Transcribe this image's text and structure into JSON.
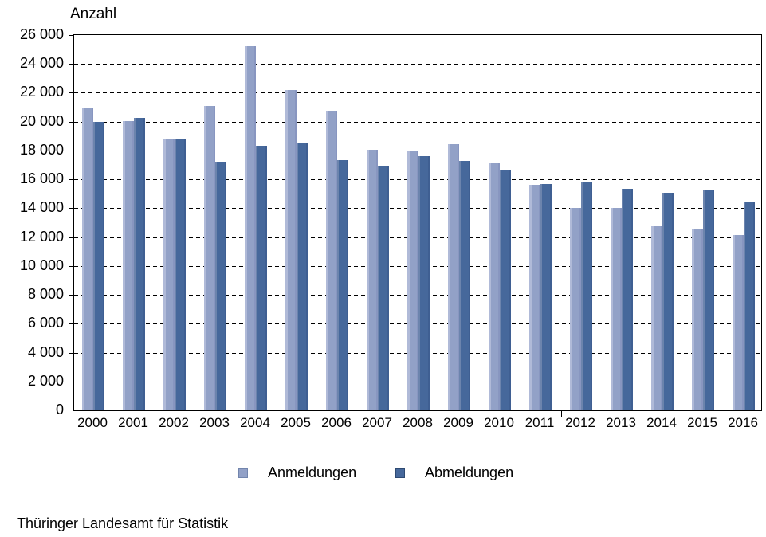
{
  "title": "Anzahl",
  "footer": "Thüringer Landesamt für Statistik",
  "legend": {
    "items": [
      {
        "label": "Anmeldungen",
        "series": "anmeldungen"
      },
      {
        "label": "Abmeldungen",
        "series": "abmeldungen"
      }
    ],
    "position": "bottom"
  },
  "y_axis": {
    "label": "Anzahl",
    "min": 0,
    "max": 26000,
    "step": 2000,
    "tick_labels": [
      "0",
      "2 000",
      "4 000",
      "6 000",
      "8 000",
      "10 000",
      "12 000",
      "14 000",
      "16 000",
      "18 000",
      "20 000",
      "22 000",
      "24 000",
      "26 000"
    ]
  },
  "colors": {
    "anmeldungen": "#92a1c7",
    "anmeldungen_highlight": "#b0bad8",
    "anmeldungen_shadow": "#8896c0",
    "anmeldungen_border": "#7285ad",
    "abmeldungen": "#46689b",
    "abmeldungen_highlight": "#6c84ad",
    "abmeldungen_shadow": "#3f5f92",
    "abmeldungen_border": "#2e4a72",
    "grid": "#000000",
    "axis": "#000000",
    "text": "#000000"
  },
  "chart_data": {
    "type": "bar",
    "title": "Anzahl",
    "xlabel": "",
    "ylabel": "Anzahl",
    "ylim": [
      0,
      26000
    ],
    "grid": "horizontal-dashed",
    "legend_position": "bottom",
    "categories": [
      "2000",
      "2001",
      "2002",
      "2003",
      "2004",
      "2005",
      "2006",
      "2007",
      "2008",
      "2009",
      "2010",
      "2011",
      "2012",
      "2013",
      "2014",
      "2015",
      "2016"
    ],
    "series": [
      {
        "name": "Anmeldungen",
        "values": [
          20900,
          20050,
          18750,
          21100,
          25250,
          22200,
          20750,
          18050,
          18000,
          18450,
          17150,
          15650,
          14000,
          14050,
          12750,
          12550,
          12150
        ]
      },
      {
        "name": "Abmeldungen",
        "values": [
          20000,
          20250,
          18800,
          17250,
          18350,
          18550,
          17350,
          16950,
          17600,
          17300,
          16650,
          15700,
          15850,
          15350,
          15050,
          15250,
          14400
        ]
      }
    ],
    "x_axis_boundary_tick_between": [
      "2011",
      "2012"
    ]
  }
}
